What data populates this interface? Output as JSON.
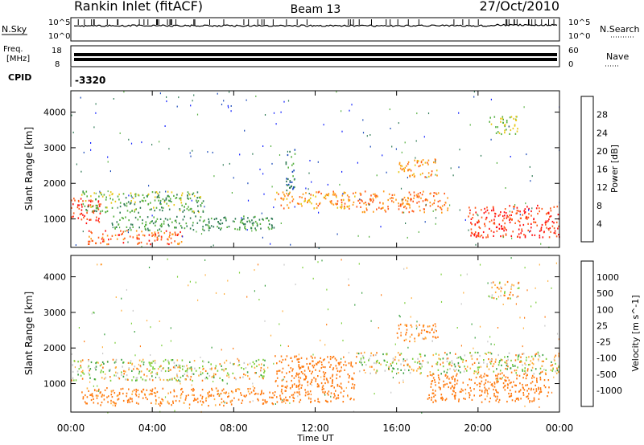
{
  "header": {
    "station": "Rankin Inlet (fitACF)",
    "beam": "Beam 13",
    "date": "27/Oct/2010"
  },
  "top_panels": {
    "nsky_label": "N.Sky",
    "nsky_max": "10^5",
    "nsky_min": "10^0",
    "nsearch_label": "N.Search",
    "nsearch_max": "10^5",
    "nsearch_min": "10^0",
    "freq_label": "Freq.",
    "freq_unit": "[MHz]",
    "freq_max": "18",
    "freq_min": "8",
    "nave_label": "Nave",
    "nave_max": "60",
    "nave_min": "0",
    "cpid_label": "CPID",
    "cpid_value": "-3320"
  },
  "chart_data": [
    {
      "type": "heatmap",
      "title": "",
      "ylabel": "Slant Range [km]",
      "xlabel": "",
      "ylim": [
        200,
        4600
      ],
      "yticks": [
        "1000",
        "2000",
        "3000",
        "4000"
      ],
      "colorbar": {
        "label": "Power [dB]",
        "ticks": [
          "4",
          "8",
          "12",
          "16",
          "20",
          "24",
          "28"
        ],
        "colors": [
          "#1020ff",
          "#1848b8",
          "#2f7a55",
          "#56b040",
          "#e8c818",
          "#ff9a18",
          "#ff5a18",
          "#ff1010"
        ]
      },
      "bands": [
        {
          "t0": 0.0,
          "t1": 1.5,
          "r0": 900,
          "r1": 1600,
          "value": 28
        },
        {
          "t0": 0.5,
          "t1": 6.5,
          "r0": 1200,
          "r1": 1800,
          "value": 14
        },
        {
          "t0": 0.8,
          "t1": 5.5,
          "r0": 300,
          "r1": 700,
          "value": 26
        },
        {
          "t0": 2.0,
          "t1": 10.0,
          "r0": 700,
          "r1": 1100,
          "value": 12
        },
        {
          "t0": 10.0,
          "t1": 14.0,
          "r0": 1300,
          "r1": 1800,
          "value": 22
        },
        {
          "t0": 10.5,
          "t1": 11.0,
          "r0": 1800,
          "r1": 3000,
          "value": 10
        },
        {
          "t0": 14.0,
          "t1": 18.5,
          "r0": 1200,
          "r1": 1800,
          "value": 24
        },
        {
          "t0": 16.0,
          "t1": 18.0,
          "r0": 2200,
          "r1": 2700,
          "value": 22
        },
        {
          "t0": 19.5,
          "t1": 24.0,
          "r0": 500,
          "r1": 1400,
          "value": 28
        },
        {
          "t0": 20.5,
          "t1": 22.0,
          "r0": 3400,
          "r1": 3900,
          "value": 16
        }
      ]
    },
    {
      "type": "heatmap",
      "title": "",
      "ylabel": "Slant Range [km]",
      "xlabel": "Time UT",
      "xticks": [
        "00:00",
        "04:00",
        "08:00",
        "12:00",
        "16:00",
        "20:00",
        "00:00"
      ],
      "ylim": [
        200,
        4600
      ],
      "yticks": [
        "1000",
        "2000",
        "3000",
        "4000"
      ],
      "colorbar": {
        "label": "Velocity [m s^-1]",
        "ticks": [
          "1000",
          "500",
          "100",
          "25",
          "-25",
          "-100",
          "-500",
          "-1000"
        ],
        "colors": [
          "#1a3cc8",
          "#2e8a6a",
          "#3aa040",
          "#7ccf3a",
          "#c8c8c8",
          "#ffb040",
          "#ff7a10",
          "#ff3010",
          "#ff0000"
        ]
      },
      "bands": [
        {
          "t0": 0.0,
          "t1": 9.5,
          "r0": 1100,
          "r1": 1700,
          "value": 0
        },
        {
          "t0": 0.5,
          "t1": 10.0,
          "r0": 400,
          "r1": 900,
          "value": -200
        },
        {
          "t0": 10.0,
          "t1": 14.0,
          "r0": 500,
          "r1": 1800,
          "value": -300
        },
        {
          "t0": 14.0,
          "t1": 24.0,
          "r0": 1300,
          "r1": 1900,
          "value": 0
        },
        {
          "t0": 17.5,
          "t1": 23.5,
          "r0": 500,
          "r1": 1300,
          "value": -250
        },
        {
          "t0": 16.0,
          "t1": 18.0,
          "r0": 2200,
          "r1": 2700,
          "value": -150
        },
        {
          "t0": 20.5,
          "t1": 22.0,
          "r0": 3400,
          "r1": 3900,
          "value": -100
        }
      ]
    }
  ]
}
